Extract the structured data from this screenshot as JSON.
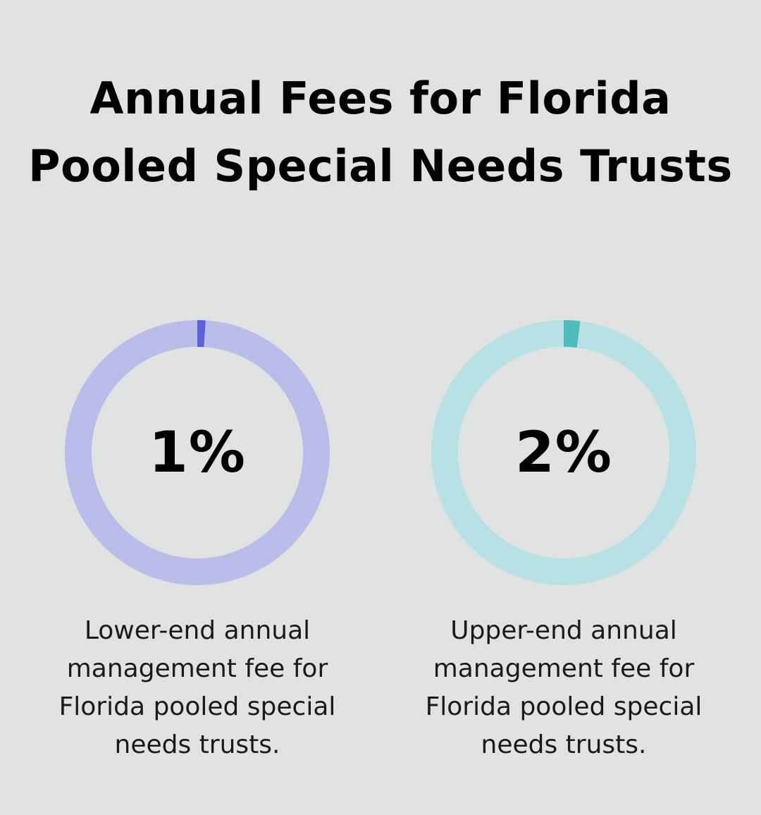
{
  "title": "Annual Fees for Florida Pooled Special Needs Trusts",
  "chart_data": [
    {
      "type": "pie",
      "value": 1,
      "max": 100,
      "label": "1%",
      "caption": "Lower-end annual management fee for Florida pooled special needs trusts.",
      "colors": {
        "track": "#babdea",
        "fill": "#5c62d6"
      }
    },
    {
      "type": "pie",
      "value": 2,
      "max": 100,
      "label": "2%",
      "caption": "Upper-end annual management fee for Florida pooled special needs trusts.",
      "colors": {
        "track": "#b7e1e4",
        "fill": "#4fbdbe"
      }
    }
  ]
}
